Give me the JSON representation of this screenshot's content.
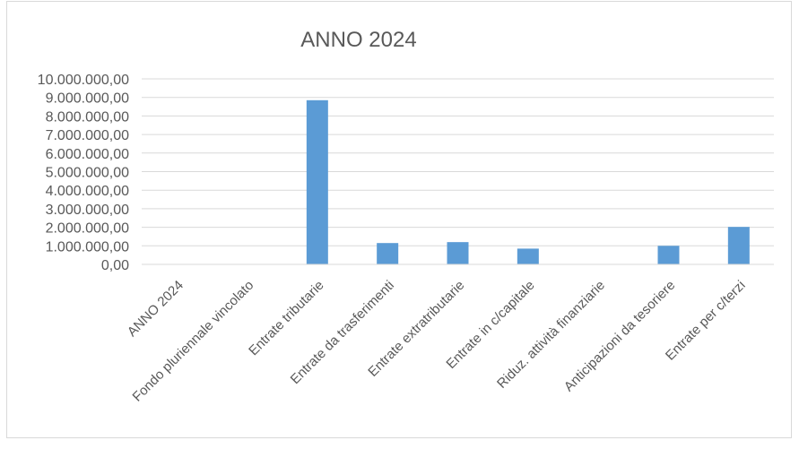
{
  "chart_data": {
    "type": "bar",
    "title": "ANNO 2024",
    "categories": [
      "ANNO 2024",
      "Fondo pluriennale vincolato",
      "Entrate tributarie",
      "Entrate da trasferimenti",
      "Entrate extratributarie",
      "Entrate in c/capitale",
      "Riduz. attività finanziarie",
      "Anticipazioni da tesoriere",
      "Entrate per c/terzi"
    ],
    "values": [
      0,
      0,
      8850000,
      1150000,
      1200000,
      850000,
      0,
      1000000,
      2020000
    ],
    "ylim": [
      0,
      10000000
    ],
    "ytick_step": 1000000,
    "ytick_labels": [
      "0,00",
      "1.000.000,00",
      "2.000.000,00",
      "3.000.000,00",
      "4.000.000,00",
      "5.000.000,00",
      "6.000.000,00",
      "7.000.000,00",
      "8.000.000,00",
      "9.000.000,00",
      "10.000.000,00"
    ],
    "xlabel": "",
    "ylabel": "",
    "grid": true,
    "bar_color": "#5b9bd5",
    "grid_color": "#d9d9d9"
  }
}
